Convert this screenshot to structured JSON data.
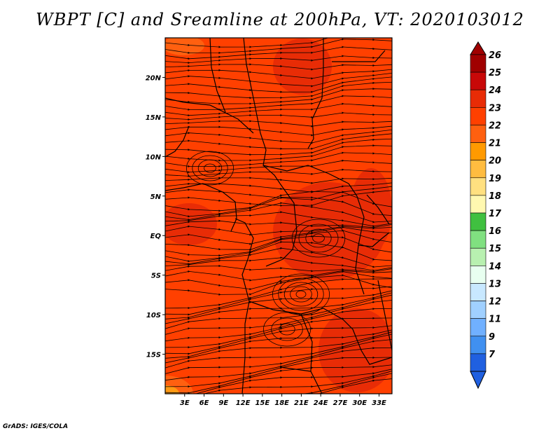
{
  "title": "WBPT [C] and Sreamline at 200hPa, VT: 2020103012",
  "footer": "GrADS: IGES/COLA",
  "map": {
    "lon_range": [
      0,
      35
    ],
    "lat_range": [
      -20,
      25
    ],
    "lat_ticks": [
      {
        "value": 20,
        "label": "20N"
      },
      {
        "value": 15,
        "label": "15N"
      },
      {
        "value": 10,
        "label": "10N"
      },
      {
        "value": 5,
        "label": "5N"
      },
      {
        "value": 0,
        "label": "EQ"
      },
      {
        "value": -5,
        "label": "5S"
      },
      {
        "value": -10,
        "label": "10S"
      },
      {
        "value": -15,
        "label": "15S"
      }
    ],
    "lon_ticks": [
      {
        "value": 3,
        "label": "3E"
      },
      {
        "value": 6,
        "label": "6E"
      },
      {
        "value": 9,
        "label": "9E"
      },
      {
        "value": 12,
        "label": "12E"
      },
      {
        "value": 15,
        "label": "15E"
      },
      {
        "value": 18,
        "label": "18E"
      },
      {
        "value": 21,
        "label": "21E"
      },
      {
        "value": 24,
        "label": "24E"
      },
      {
        "value": 27,
        "label": "27E"
      },
      {
        "value": 30,
        "label": "30E"
      },
      {
        "value": 33,
        "label": "33E"
      }
    ],
    "field_colors": {
      "base": "#ff4000",
      "warm": "#e82c06",
      "cool": "#ff6010",
      "coolest": "#ff9a14"
    },
    "line_color": "#000000"
  },
  "colorbar": {
    "levels": [
      {
        "label": "26",
        "color": "#a00000"
      },
      {
        "label": "25",
        "color": "#c80808"
      },
      {
        "label": "24",
        "color": "#e82c06"
      },
      {
        "label": "23",
        "color": "#ff4000"
      },
      {
        "label": "22",
        "color": "#ff6010"
      },
      {
        "label": "21",
        "color": "#ff9a00"
      },
      {
        "label": "20",
        "color": "#ffbc40"
      },
      {
        "label": "19",
        "color": "#ffe080"
      },
      {
        "label": "18",
        "color": "#fff8b0"
      },
      {
        "label": "17",
        "color": "#40c040"
      },
      {
        "label": "16",
        "color": "#80e080"
      },
      {
        "label": "15",
        "color": "#b8f0b0"
      },
      {
        "label": "14",
        "color": "#e8fff0"
      },
      {
        "label": "13",
        "color": "#c8e8ff"
      },
      {
        "label": "12",
        "color": "#a0d0ff"
      },
      {
        "label": "11",
        "color": "#70b0ff"
      },
      {
        "label": "9",
        "color": "#4090f0"
      },
      {
        "label": "7",
        "color": "#2060e0"
      }
    ]
  }
}
